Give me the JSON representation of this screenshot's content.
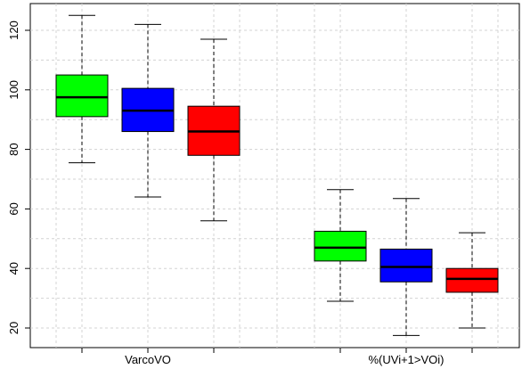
{
  "chart_data": {
    "type": "boxplot",
    "title": "",
    "xlabel": "",
    "ylabel": "",
    "ylim": [
      15,
      129
    ],
    "yticks": [
      20,
      40,
      60,
      80,
      100,
      120
    ],
    "ytick_labels": [
      "20",
      "40",
      "60",
      "80",
      "100",
      "120"
    ],
    "grid": true,
    "groups": [
      {
        "label": "VarcoVO",
        "boxes": [
          {
            "color": "#00ff00",
            "whisker_low": 75.5,
            "q1": 91,
            "median": 97.5,
            "q3": 105,
            "whisker_high": 125
          },
          {
            "color": "#0000ff",
            "whisker_low": 64,
            "q1": 86,
            "median": 93,
            "q3": 100.5,
            "whisker_high": 122
          },
          {
            "color": "#ff0000",
            "whisker_low": 56,
            "q1": 78,
            "median": 86,
            "q3": 94.5,
            "whisker_high": 117
          }
        ]
      },
      {
        "label": "%(UVi+1>VOi)",
        "boxes": [
          {
            "color": "#00ff00",
            "whisker_low": 29,
            "q1": 42.5,
            "median": 47,
            "q3": 52.5,
            "whisker_high": 66.5
          },
          {
            "color": "#0000ff",
            "whisker_low": 17.5,
            "q1": 35.5,
            "median": 40.5,
            "q3": 46.5,
            "whisker_high": 63.5
          },
          {
            "color": "#ff0000",
            "whisker_low": 20,
            "q1": 32,
            "median": 36.5,
            "q3": 40,
            "whisker_high": 52
          }
        ]
      }
    ]
  }
}
